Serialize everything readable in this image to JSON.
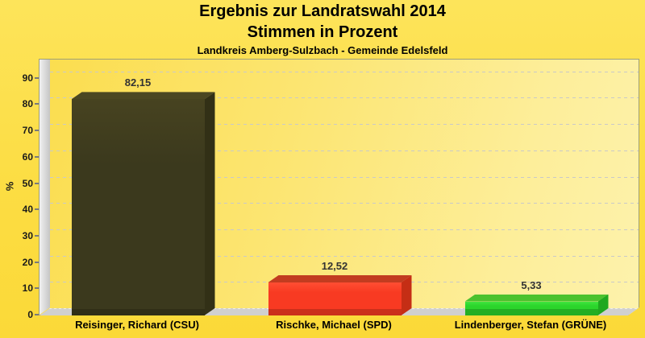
{
  "header": {
    "title_line1": "Ergebnis zur Landratswahl 2014",
    "title_line2": "Stimmen in Prozent",
    "subtitle": "Landkreis Amberg-Sulzbach - Gemeinde Edelsfeld"
  },
  "chart_data": {
    "type": "bar",
    "title": "Ergebnis zur Landratswahl 2014",
    "subtitle2": "Stimmen in Prozent",
    "subtitle3": "Landkreis Amberg-Sulzbach - Gemeinde Edelsfeld",
    "ylabel": "%",
    "xlabel": "",
    "ylim": [
      0,
      95
    ],
    "yticks": [
      0,
      10,
      20,
      30,
      40,
      50,
      60,
      70,
      80,
      90
    ],
    "grid": true,
    "grid_style": "dashed horizontal",
    "legend": false,
    "style": "3d boxes on yellow background",
    "categories": [
      "Reisinger, Richard (CSU)",
      "Rischke, Michael (SPD)",
      "Lindenberger, Stefan (GRÜNE)"
    ],
    "values": [
      82.15,
      12.52,
      5.33
    ],
    "value_labels": [
      "82,15",
      "12,52",
      "5,33"
    ],
    "bars": [
      {
        "party": "CSU",
        "front": "#3B391D",
        "front_light": "#474320",
        "top": "#4B4722",
        "side": "#323016"
      },
      {
        "party": "SPD",
        "front": "#F83A22",
        "front_light": "#FF4E33",
        "top": "#C23C20",
        "side": "#C52E15"
      },
      {
        "party": "GRÜNE",
        "front": "#2BD52B",
        "front_light": "#3FE43F",
        "top": "#4BC22E",
        "side": "#1FA81F"
      }
    ]
  },
  "colors": {
    "background": "#FCDF45",
    "plot_border": "#9F9F76",
    "grid_line": "#C9C9C9",
    "wall": "#D9D9D9",
    "floor": "#D0D0D0",
    "tick_text": "#1A1A1A",
    "value_text": "#333333",
    "title_text": "#000000"
  }
}
